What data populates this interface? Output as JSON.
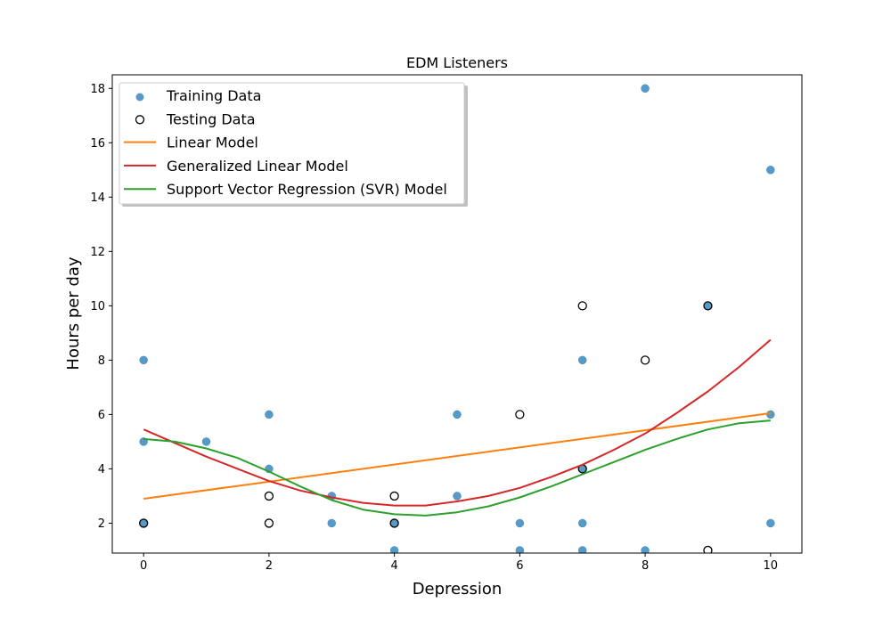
{
  "chart_data": {
    "type": "scatter",
    "title": "EDM Listeners",
    "xlabel": "Depression",
    "ylabel": "Hours per day",
    "xlim": [
      -0.5,
      10.5
    ],
    "ylim": [
      0.9,
      18.5
    ],
    "xticks": [
      0,
      2,
      4,
      6,
      8,
      10
    ],
    "yticks": [
      2,
      4,
      6,
      8,
      10,
      12,
      14,
      16,
      18
    ],
    "grid": false,
    "legend_position": "upper-left",
    "series": [
      {
        "name": "Training Data",
        "kind": "scatter",
        "marker": "filled-circle",
        "color": "#1f77b4",
        "points": [
          [
            0,
            8
          ],
          [
            0,
            5
          ],
          [
            0,
            2
          ],
          [
            1,
            5
          ],
          [
            2,
            6
          ],
          [
            2,
            4
          ],
          [
            3,
            3
          ],
          [
            3,
            2
          ],
          [
            4,
            2
          ],
          [
            4,
            1
          ],
          [
            5,
            6
          ],
          [
            5,
            3
          ],
          [
            6,
            2
          ],
          [
            6,
            1
          ],
          [
            7,
            8
          ],
          [
            7,
            4
          ],
          [
            7,
            2
          ],
          [
            7,
            1
          ],
          [
            8,
            18
          ],
          [
            8,
            1
          ],
          [
            9,
            10
          ],
          [
            10,
            15
          ],
          [
            10,
            6
          ],
          [
            10,
            2
          ]
        ]
      },
      {
        "name": "Testing Data",
        "kind": "scatter",
        "marker": "hollow-circle",
        "color": "#000000",
        "points": [
          [
            0,
            2
          ],
          [
            2,
            3
          ],
          [
            2,
            2
          ],
          [
            4,
            3
          ],
          [
            4,
            2
          ],
          [
            6,
            6
          ],
          [
            7,
            10
          ],
          [
            7,
            4
          ],
          [
            8,
            8
          ],
          [
            9,
            10
          ],
          [
            9,
            1
          ]
        ]
      },
      {
        "name": "Linear Model",
        "kind": "line",
        "color": "#ff7f0e",
        "points": [
          [
            0,
            2.9
          ],
          [
            10,
            6.05
          ]
        ]
      },
      {
        "name": "Generalized Linear Model",
        "kind": "line",
        "color": "#d62728",
        "points": [
          [
            0,
            5.45
          ],
          [
            0.5,
            4.95
          ],
          [
            1,
            4.45
          ],
          [
            1.5,
            4.0
          ],
          [
            2,
            3.55
          ],
          [
            2.5,
            3.2
          ],
          [
            3,
            2.95
          ],
          [
            3.5,
            2.75
          ],
          [
            4,
            2.65
          ],
          [
            4.5,
            2.65
          ],
          [
            5,
            2.8
          ],
          [
            5.5,
            3.0
          ],
          [
            6,
            3.3
          ],
          [
            6.5,
            3.7
          ],
          [
            7,
            4.15
          ],
          [
            7.5,
            4.7
          ],
          [
            8,
            5.3
          ],
          [
            8.5,
            6.05
          ],
          [
            9,
            6.85
          ],
          [
            9.5,
            7.75
          ],
          [
            10,
            8.75
          ]
        ]
      },
      {
        "name": "Support Vector Regression (SVR) Model",
        "kind": "line",
        "color": "#2ca02c",
        "points": [
          [
            0,
            5.1
          ],
          [
            0.5,
            5.0
          ],
          [
            1,
            4.75
          ],
          [
            1.5,
            4.4
          ],
          [
            2,
            3.9
          ],
          [
            2.5,
            3.35
          ],
          [
            3,
            2.85
          ],
          [
            3.5,
            2.5
          ],
          [
            4,
            2.33
          ],
          [
            4.5,
            2.28
          ],
          [
            5,
            2.4
          ],
          [
            5.5,
            2.62
          ],
          [
            6,
            2.95
          ],
          [
            6.5,
            3.35
          ],
          [
            7,
            3.8
          ],
          [
            7.5,
            4.25
          ],
          [
            8,
            4.7
          ],
          [
            8.5,
            5.1
          ],
          [
            9,
            5.45
          ],
          [
            9.5,
            5.68
          ],
          [
            10,
            5.78
          ]
        ]
      }
    ]
  }
}
